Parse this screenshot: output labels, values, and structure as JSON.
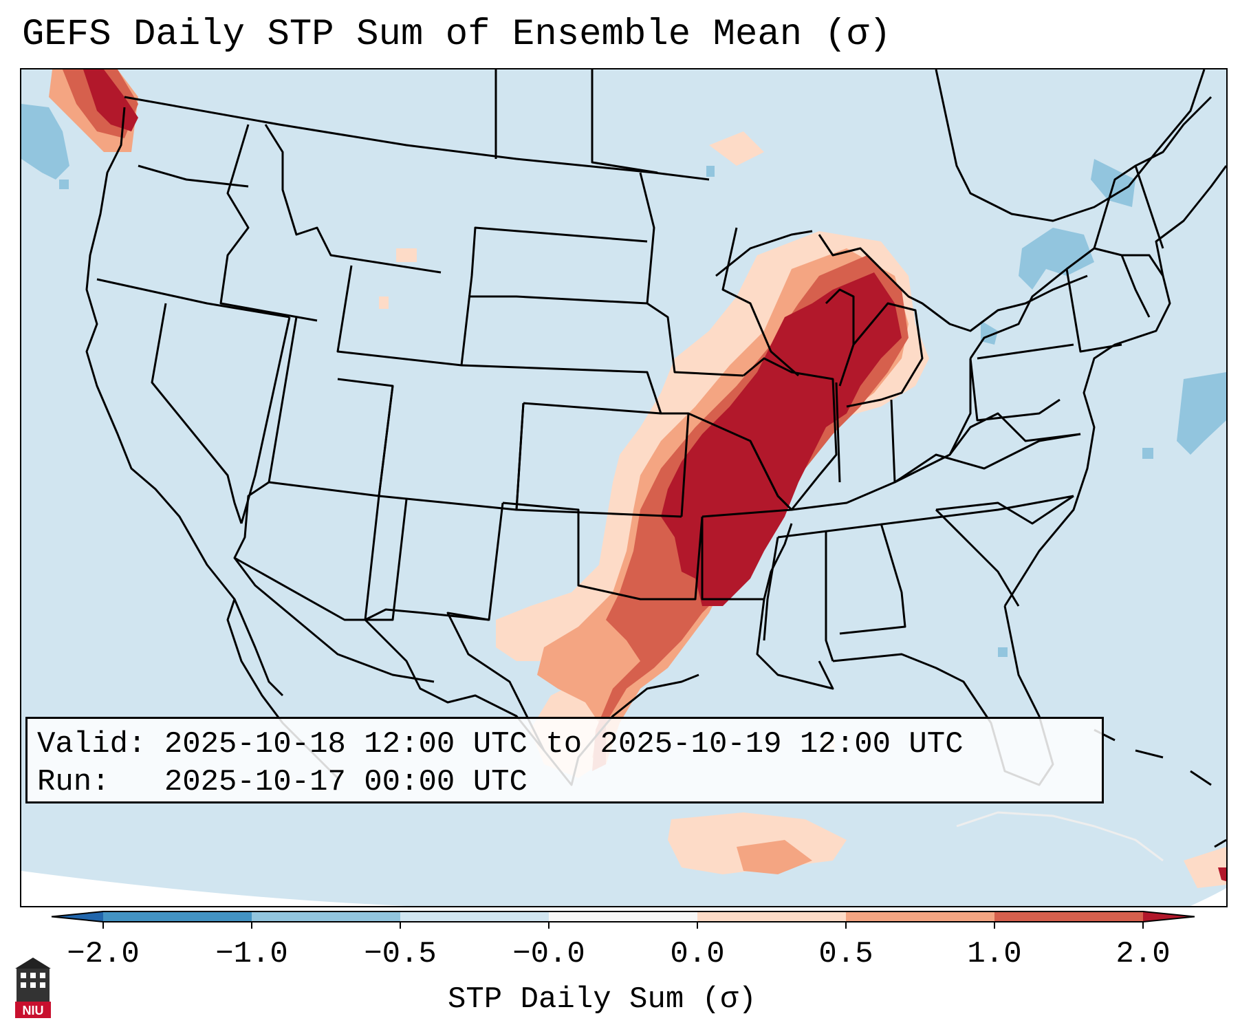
{
  "title": "GEFS Daily STP Sum of Ensemble Mean (σ)",
  "info": {
    "valid_line": "Valid: 2025-10-18 12:00 UTC to 2025-10-19 12:00 UTC",
    "run_line": "Run:   2025-10-17 00:00 UTC"
  },
  "colorbar": {
    "label": "STP Daily Sum (σ)",
    "ticks": [
      "−2.0",
      "−1.0",
      "−0.5",
      "−0.0",
      "0.0",
      "0.5",
      "1.0",
      "2.0"
    ],
    "colors": [
      "#2166ac",
      "#4393c3",
      "#92c5de",
      "#d1e5f0",
      "#f7f7f7",
      "#fddbc7",
      "#f4a582",
      "#d6604d",
      "#b2182b"
    ]
  },
  "logo": {
    "text": "NIU"
  },
  "map": {
    "background_color": "#d1e5f0",
    "region": "Continental United States",
    "high_value_region": "Mississippi and Ohio Valleys to the Great Lakes",
    "colors": {
      "very_high": "#b2182b",
      "high": "#d6604d",
      "medium": "#f4a582",
      "low": "#fddbc7",
      "negative": "#92c5de"
    }
  }
}
